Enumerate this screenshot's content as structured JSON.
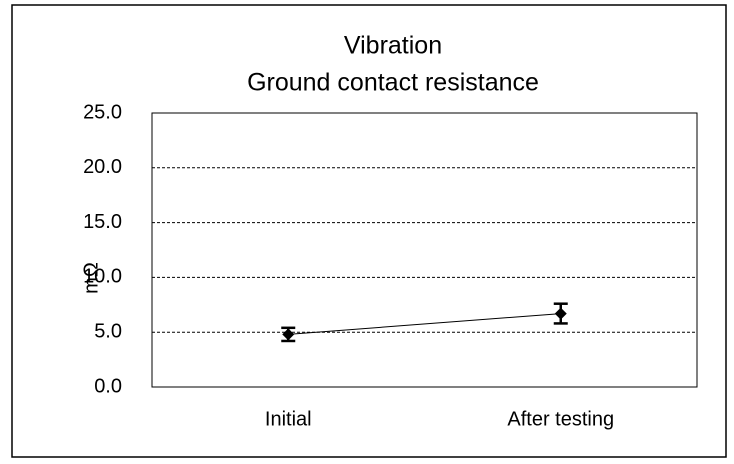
{
  "chart_data": {
    "type": "line",
    "title": "Vibration",
    "subtitle": "Ground contact resistance",
    "y_label": "mΩ",
    "categories": [
      "Initial",
      "After testing"
    ],
    "series": [
      {
        "color": "#000000",
        "values": [
          4.8,
          6.7
        ],
        "errors": [
          0.6,
          0.9
        ]
      }
    ],
    "ylim": [
      0,
      25
    ],
    "yticks": [
      {
        "value": 0,
        "label": "0.0"
      },
      {
        "value": 5,
        "label": "5.0"
      },
      {
        "value": 10,
        "label": "10.0"
      },
      {
        "value": 15,
        "label": "15.0"
      },
      {
        "value": 20,
        "label": "20.0"
      },
      {
        "value": 25,
        "label": "25.0"
      }
    ],
    "grid": true
  }
}
